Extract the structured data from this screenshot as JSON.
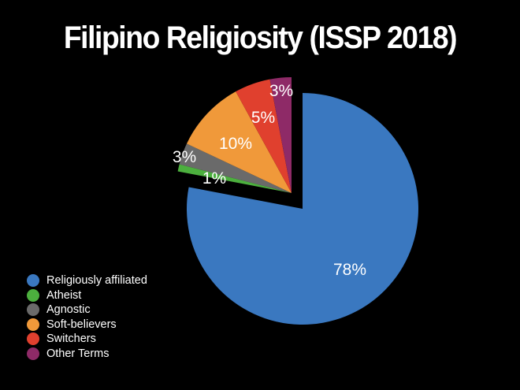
{
  "title": "Filipino Religiosity (ISSP 2018)",
  "chart_data": {
    "type": "pie",
    "title": "Filipino Religiosity (ISSP 2018)",
    "categories": [
      "Religiously affiliated",
      "Atheist",
      "Agnostic",
      "Soft-believers",
      "Switchers",
      "Other Terms"
    ],
    "values": [
      78,
      1,
      3,
      10,
      5,
      3
    ],
    "labels": [
      "78%",
      "1%",
      "3%",
      "10%",
      "5%",
      "3%"
    ],
    "colors": [
      "#3a78c0",
      "#4caf3e",
      "#6a6a6a",
      "#f0993a",
      "#e0402e",
      "#8e2a67"
    ],
    "exploded": [
      false,
      true,
      true,
      true,
      true,
      true
    ],
    "legend_position": "bottom-left",
    "start_angle": "12 o'clock, clockwise"
  },
  "legend": [
    {
      "label": "Religiously affiliated",
      "color": "#3a78c0"
    },
    {
      "label": "Atheist",
      "color": "#4caf3e"
    },
    {
      "label": "Agnostic",
      "color": "#6a6a6a"
    },
    {
      "label": "Soft-believers",
      "color": "#f0993a"
    },
    {
      "label": "Switchers",
      "color": "#e0402e"
    },
    {
      "label": "Other Terms",
      "color": "#8e2a67"
    }
  ]
}
